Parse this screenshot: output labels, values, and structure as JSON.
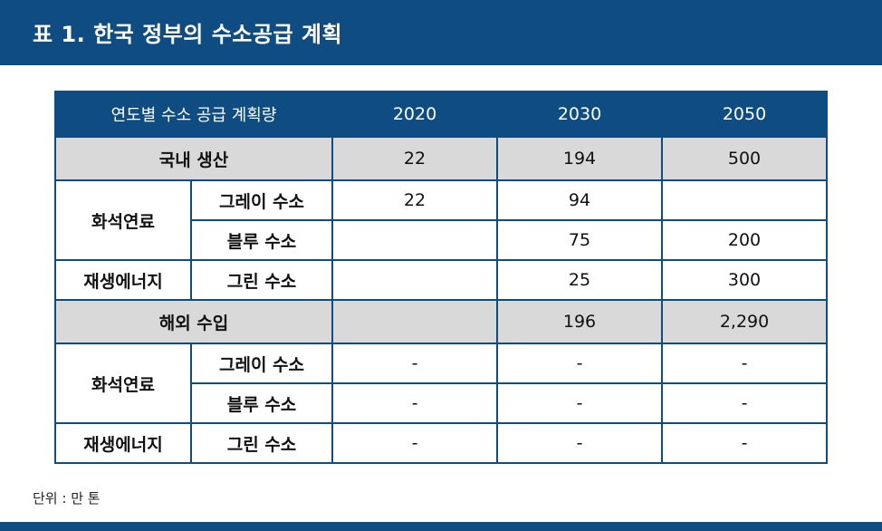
{
  "title": "표 1. 한국 정부의 수소공급 계획",
  "table": {
    "header": {
      "label": "연도별 수소 공급 계획량",
      "years": [
        "2020",
        "2030",
        "2050"
      ]
    },
    "domestic": {
      "label": "국내 생산",
      "totals": [
        "22",
        "194",
        "500"
      ],
      "fossil_label": "화석연료",
      "grey": {
        "label": "그레이 수소",
        "values": [
          "22",
          "94",
          ""
        ]
      },
      "blue": {
        "label": "블루 수소",
        "values": [
          "",
          "75",
          "200"
        ]
      },
      "renewable_label": "재생에너지",
      "green": {
        "label": "그린 수소",
        "values": [
          "",
          "25",
          "300"
        ]
      }
    },
    "overseas": {
      "label": "해외 수입",
      "totals": [
        "",
        "196",
        "2,290"
      ],
      "fossil_label": "화석연료",
      "grey": {
        "label": "그레이 수소",
        "values": [
          "-",
          "-",
          "-"
        ]
      },
      "blue": {
        "label": "블루 수소",
        "values": [
          "-",
          "-",
          "-"
        ]
      },
      "renewable_label": "재생에너지",
      "green": {
        "label": "그린 수소",
        "values": [
          "-",
          "-",
          "-"
        ]
      }
    }
  },
  "unit_note": "단위 : 만 톤"
}
